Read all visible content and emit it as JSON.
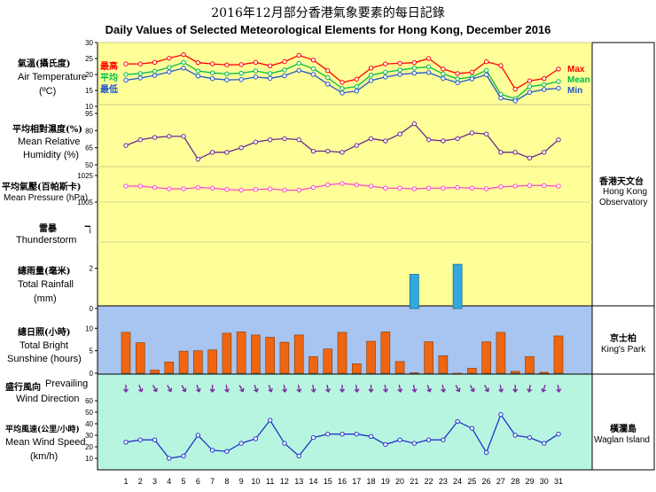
{
  "title_cn": "2016年12月部分香港氣象要素的每日記錄",
  "title_en": "Daily Values of Selected Meteorological Elements for Hong Kong, December 2016",
  "colors": {
    "yellow_panel": "#ffff99",
    "blue_panel": "#a8c4f0",
    "green_panel": "#b8f5e0",
    "max": "#ff0000",
    "mean": "#00bb44",
    "min": "#2255cc",
    "humidity": "#6a2a8a",
    "pressure": "#ff44cc",
    "sunshine": "#ee6611",
    "rainfall": "#33aadd",
    "wind": "#2233cc",
    "arrow": "#7a2aa0"
  },
  "labels": {
    "temp_cn": "氣溫(攝氏度)",
    "temp_en": "Air Temperature",
    "temp_unit": "(ºC)",
    "max_cn": "最高",
    "mean_cn": "平均",
    "min_cn": "最低",
    "max_en": "Max",
    "mean_en": "Mean",
    "min_en": "Min",
    "rh_cn": "平均相對濕度(%)",
    "rh_en1": "Mean Relative",
    "rh_en2": "Humidity (%)",
    "pres_cn": "平均氣壓(百帕斯卡)",
    "pres_en": "Mean Pressure (hPa)",
    "thunder_cn": "雷暴",
    "thunder_en": "Thunderstorm",
    "rain_cn": "總雨量(毫米)",
    "rain_en1": "Total Rainfall",
    "rain_en2": "(mm)",
    "sun_cn": "總日照(小時)",
    "sun_en1": "Total Bright",
    "sun_en2": "Sunshine  (hours)",
    "wdir_cn": "盛行風向",
    "wdir_en1": "Prevailing",
    "wdir_en2": "Wind Direction",
    "wspd_cn": "平均風速(公里/小時)",
    "wspd_en1": "Mean Wind Speed",
    "wspd_en2": "(km/h)",
    "hko_cn": "香港天文台",
    "hko_en1": "Hong Kong",
    "hko_en2": "Observatory",
    "kp_cn": "京士柏",
    "kp_en": "King's Park",
    "wg_cn": "橫瀾島",
    "wg_en": "Waglan Island"
  },
  "chart_data": {
    "type": "line",
    "x": [
      1,
      2,
      3,
      4,
      5,
      6,
      7,
      8,
      9,
      10,
      11,
      12,
      13,
      14,
      15,
      16,
      17,
      18,
      19,
      20,
      21,
      22,
      23,
      24,
      25,
      26,
      27,
      28,
      29,
      30,
      31
    ],
    "temperature": {
      "ylim": [
        10,
        30
      ],
      "ticks": [
        10,
        15,
        20,
        25,
        30
      ],
      "series": [
        {
          "name": "Max",
          "values": [
            23.3,
            23.3,
            23.8,
            25.1,
            26.2,
            23.7,
            23.3,
            23,
            23.1,
            23.8,
            22.7,
            24,
            26,
            24.5,
            21.2,
            17.5,
            18.5,
            22,
            23.3,
            23.5,
            23.7,
            25,
            21.7,
            20.3,
            20.7,
            24,
            22.8,
            15.4,
            18,
            18.7,
            21.7
          ]
        },
        {
          "name": "Mean",
          "values": [
            20,
            20.3,
            21,
            22.2,
            23.8,
            21.1,
            20.5,
            20.2,
            20.4,
            21.1,
            20.3,
            21.4,
            23.5,
            21.8,
            19,
            15.6,
            16.2,
            19.8,
            20.7,
            21.4,
            22,
            22.4,
            20.2,
            18.6,
            19.2,
            21.3,
            13.8,
            12.4,
            16.2,
            16.8,
            17.8
          ]
        },
        {
          "name": "Min",
          "values": [
            18.2,
            18.9,
            19.7,
            20.8,
            22,
            19.5,
            18.7,
            18.3,
            18.4,
            19.2,
            18.8,
            19.6,
            21.3,
            20,
            17,
            14.2,
            14.8,
            18.1,
            19.2,
            20,
            20.4,
            20.6,
            18.8,
            17.4,
            18.6,
            19.9,
            12.6,
            11.7,
            14.4,
            15.3,
            15.7
          ]
        }
      ]
    },
    "humidity": {
      "ylim": [
        50,
        95
      ],
      "ticks": [
        50,
        65,
        80,
        95
      ],
      "values": [
        67,
        72,
        74,
        75,
        75,
        55,
        61,
        61,
        65,
        70,
        72,
        73,
        72,
        62,
        62,
        61,
        67,
        73,
        71,
        77,
        86,
        72,
        71,
        73,
        78,
        77,
        61,
        61,
        56,
        61,
        72
      ]
    },
    "pressure": {
      "ylim": [
        1005,
        1025
      ],
      "ticks": [
        1005,
        1025
      ],
      "values": [
        1017,
        1017,
        1016,
        1015,
        1015,
        1016,
        1015.5,
        1014.5,
        1014,
        1014.5,
        1015,
        1014,
        1014,
        1016,
        1018,
        1019,
        1018,
        1017,
        1015.5,
        1015.5,
        1015,
        1015.5,
        1015.5,
        1016,
        1015.5,
        1015,
        1016.5,
        1017,
        1017.5,
        1017.5,
        1017
      ]
    },
    "thunderstorm": {
      "days": []
    },
    "rainfall": {
      "ylim": [
        0,
        3
      ],
      "ticks": [
        0,
        2
      ],
      "values": [
        0,
        0,
        0,
        0,
        0,
        0,
        0,
        0,
        0,
        0,
        0,
        0,
        0,
        0,
        0,
        0,
        0,
        0,
        0,
        0,
        1.7,
        0,
        0,
        2.2,
        0,
        0,
        0,
        0,
        0,
        0,
        0
      ]
    },
    "sunshine": {
      "ylim": [
        0,
        15
      ],
      "ticks": [
        0,
        5,
        10
      ],
      "values": [
        9.1,
        6.8,
        0.7,
        2.5,
        4.9,
        5,
        5.2,
        8.9,
        9.2,
        8.5,
        8,
        6.9,
        8.5,
        3.7,
        5.4,
        9.1,
        2.1,
        7.1,
        9.2,
        2.6,
        0.1,
        7,
        3.9,
        0,
        1.1,
        7,
        9.1,
        0.4,
        3.7,
        0.2,
        8.3
      ]
    },
    "wind_direction": {
      "angles_deg": [
        180,
        160,
        150,
        150,
        150,
        160,
        180,
        170,
        150,
        160,
        160,
        170,
        170,
        170,
        170,
        180,
        170,
        180,
        170,
        170,
        170,
        160,
        170,
        150,
        150,
        150,
        170,
        180,
        190,
        200,
        170
      ]
    },
    "wind_speed": {
      "ylim": [
        0,
        60
      ],
      "ticks": [
        10,
        20,
        30,
        40,
        50,
        60
      ],
      "values": [
        24,
        26,
        26,
        10,
        12,
        30,
        17,
        16,
        23,
        27,
        43,
        23,
        12,
        28,
        31,
        31,
        31,
        29,
        22,
        26,
        23,
        26,
        26,
        42,
        36,
        15,
        48,
        30,
        28,
        23,
        31
      ]
    }
  }
}
